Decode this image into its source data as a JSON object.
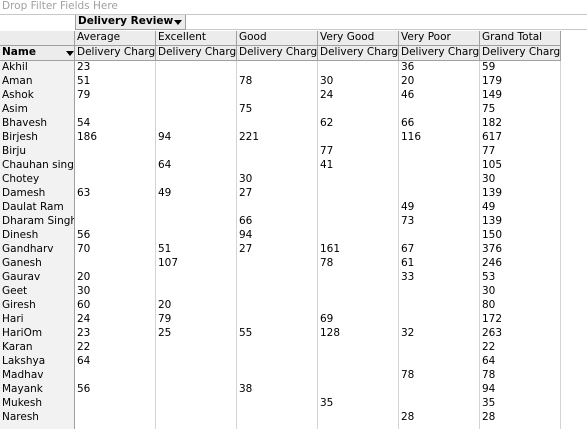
{
  "filter_zone": "Drop Filter Fields Here",
  "column_field": "Delivery Review",
  "columns": [
    "Average",
    "Excellent",
    "Good",
    "Very Good",
    "Very Poor",
    "Grand Total"
  ],
  "row_field": "Name",
  "measure": "Delivery Charge",
  "rows": [
    {
      "name": "Akhil",
      "values": [
        23,
        null,
        null,
        null,
        36,
        59
      ]
    },
    {
      "name": "Aman",
      "values": [
        51,
        null,
        78,
        30,
        20,
        179
      ]
    },
    {
      "name": "Ashok",
      "values": [
        79,
        null,
        null,
        24,
        46,
        149
      ]
    },
    {
      "name": "Asim",
      "values": [
        null,
        null,
        75,
        null,
        null,
        75
      ]
    },
    {
      "name": "Bhavesh",
      "values": [
        54,
        null,
        null,
        62,
        66,
        182
      ]
    },
    {
      "name": "Birjesh",
      "values": [
        186,
        94,
        221,
        null,
        116,
        617
      ]
    },
    {
      "name": "Birju",
      "values": [
        null,
        null,
        null,
        77,
        null,
        77
      ]
    },
    {
      "name": "Chauhan singh",
      "values": [
        null,
        64,
        null,
        41,
        null,
        105
      ]
    },
    {
      "name": "Chotey",
      "values": [
        null,
        null,
        30,
        null,
        null,
        30
      ]
    },
    {
      "name": "Damesh",
      "values": [
        63,
        49,
        27,
        null,
        null,
        139
      ]
    },
    {
      "name": "Daulat Ram",
      "values": [
        null,
        null,
        null,
        null,
        49,
        49
      ]
    },
    {
      "name": "Dharam Singh",
      "values": [
        null,
        null,
        66,
        null,
        73,
        139
      ]
    },
    {
      "name": "Dinesh",
      "values": [
        56,
        null,
        94,
        null,
        null,
        150
      ]
    },
    {
      "name": "Gandharv",
      "values": [
        70,
        51,
        27,
        161,
        67,
        376
      ]
    },
    {
      "name": "Ganesh",
      "values": [
        null,
        107,
        null,
        78,
        61,
        246
      ]
    },
    {
      "name": "Gaurav",
      "values": [
        20,
        null,
        null,
        null,
        33,
        53
      ]
    },
    {
      "name": "Geet",
      "values": [
        30,
        null,
        null,
        null,
        null,
        30
      ]
    },
    {
      "name": "Giresh",
      "values": [
        60,
        20,
        null,
        null,
        null,
        80
      ]
    },
    {
      "name": "Hari",
      "values": [
        24,
        79,
        null,
        69,
        null,
        172
      ]
    },
    {
      "name": "HariOm",
      "values": [
        23,
        25,
        55,
        128,
        32,
        263
      ]
    },
    {
      "name": "Karan",
      "values": [
        22,
        null,
        null,
        null,
        null,
        22
      ]
    },
    {
      "name": "Lakshya",
      "values": [
        64,
        null,
        null,
        null,
        null,
        64
      ]
    },
    {
      "name": "Madhav",
      "values": [
        null,
        null,
        null,
        null,
        78,
        78
      ]
    },
    {
      "name": "Mayank",
      "values": [
        56,
        null,
        38,
        null,
        null,
        94
      ]
    },
    {
      "name": "Mukesh",
      "values": [
        null,
        null,
        null,
        35,
        null,
        35
      ]
    },
    {
      "name": "Naresh",
      "values": [
        null,
        null,
        null,
        null,
        28,
        28
      ]
    }
  ]
}
